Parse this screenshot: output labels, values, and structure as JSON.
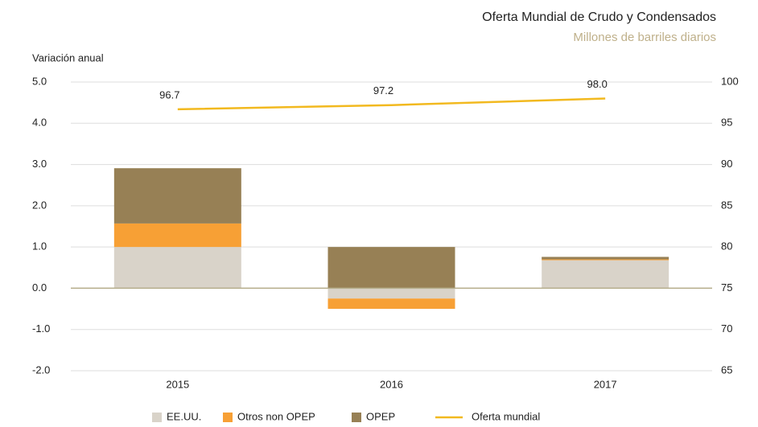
{
  "chart_data": {
    "type": "bar",
    "title": "Oferta Mundial de Crudo y Condensados",
    "subtitle": "Millones de barriles diarios",
    "y_label": "Variación anual",
    "categories": [
      "2015",
      "2016",
      "2017"
    ],
    "series": [
      {
        "name": "EE.UU.",
        "color": "#d9d3c9",
        "values": [
          1.0,
          -0.25,
          0.68
        ]
      },
      {
        "name": "Otros non OPEP",
        "color": "#f7a035",
        "values": [
          0.57,
          -0.25,
          0.02
        ]
      },
      {
        "name": "OPEP",
        "color": "#978055",
        "values": [
          1.34,
          1.0,
          0.06
        ]
      },
      {
        "name": "Oferta mundial",
        "color": "#f2b91f",
        "type": "line",
        "axis": "y2",
        "values": [
          96.7,
          97.2,
          98
        ],
        "value_labels": [
          "96.7",
          "97.2",
          "98.0"
        ]
      }
    ],
    "ylim": [
      -2,
      5
    ],
    "yticks": [
      {
        "value": -2,
        "label": "-2.0"
      },
      {
        "value": -1,
        "label": "-1.0"
      },
      {
        "value": 0,
        "label": "0.0"
      },
      {
        "value": 1,
        "label": "1.0"
      },
      {
        "value": 2,
        "label": "2.0"
      },
      {
        "value": 3,
        "label": "3.0"
      },
      {
        "value": 4,
        "label": "4.0"
      },
      {
        "value": 5,
        "label": "5.0"
      }
    ],
    "y2lim": [
      65,
      100
    ],
    "y2ticks": [
      65,
      70,
      75,
      80,
      85,
      90,
      95,
      100
    ],
    "grid": true
  }
}
